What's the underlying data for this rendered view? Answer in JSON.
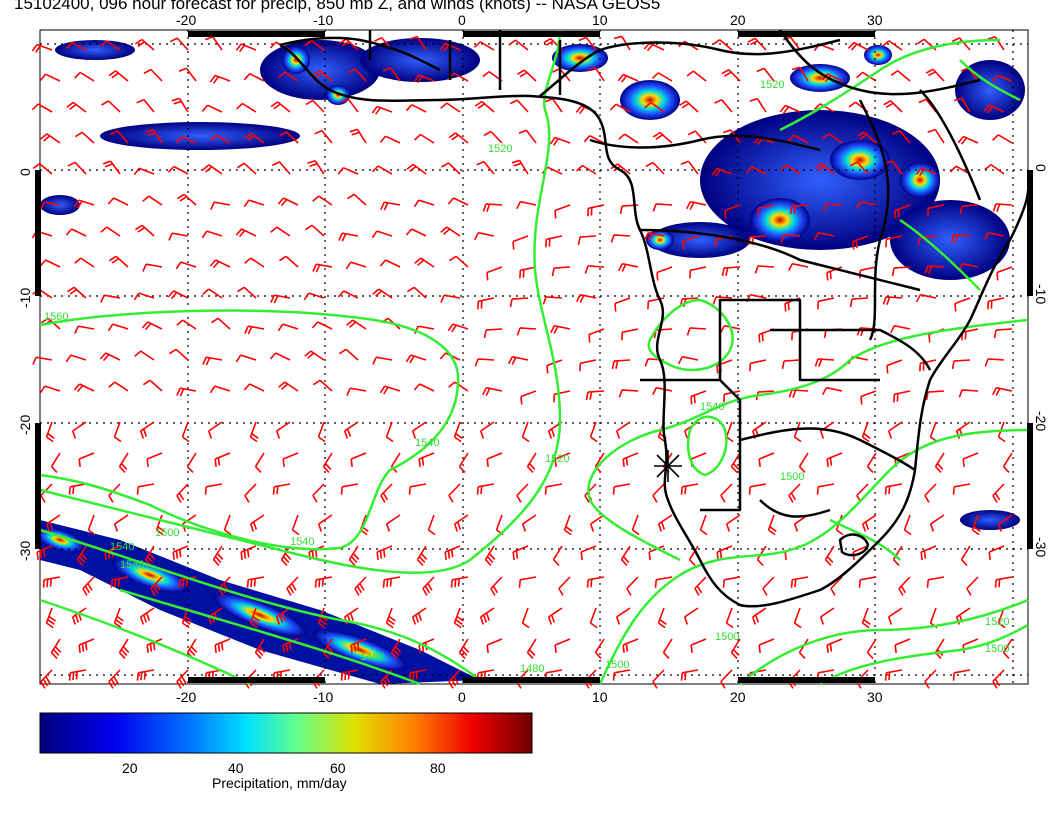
{
  "title": "15102400, 096 hour forecast for precip, 850 mb Z, and winds (knots) -- NASA GEOS5",
  "map": {
    "lon_range": [
      -30,
      40
    ],
    "lat_range": [
      -40,
      10
    ],
    "lon_ticks": [
      "-20",
      "-10",
      "0",
      "10",
      "20",
      "30"
    ],
    "lat_ticks": [
      "0",
      "-10",
      "-20",
      "-30"
    ],
    "grid": "dotted",
    "colors": {
      "contour": "#33ee33",
      "wind_barb": "#ff0000",
      "coastline": "#000000",
      "frame": "#000000"
    },
    "contour_labels": [
      "1560",
      "1540",
      "1520",
      "1540",
      "1500",
      "1540",
      "1520",
      "1520",
      "1540",
      "1500",
      "1500",
      "1520",
      "1500",
      "1540",
      "1480",
      "1480",
      "1500"
    ],
    "marker": "star-icon"
  },
  "colorbar": {
    "label": "Precipitation, mm/day",
    "ticks": [
      "20",
      "40",
      "60",
      "80"
    ],
    "colormap": [
      "#00008b",
      "#0000ff",
      "#0080ff",
      "#00ffff",
      "#80ff80",
      "#ffff00",
      "#ff8000",
      "#ff0000",
      "#800000"
    ]
  }
}
